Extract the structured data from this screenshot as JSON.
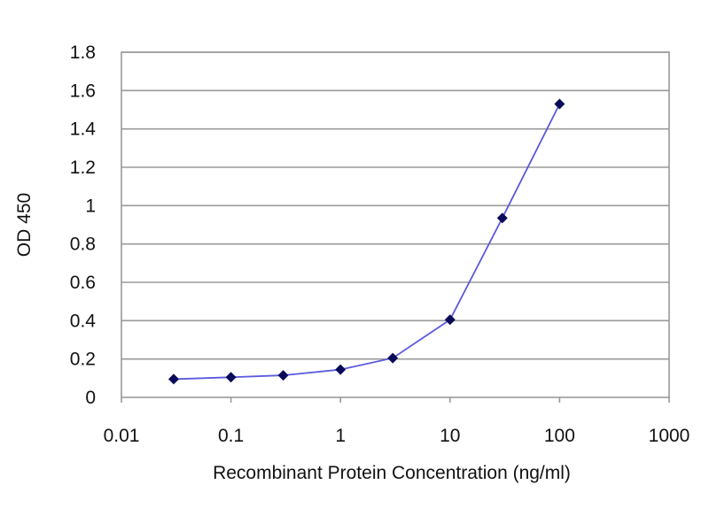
{
  "chart_data": {
    "type": "line",
    "title": "",
    "xlabel": "Recombinant Protein Concentration (ng/ml)",
    "ylabel": "OD 450",
    "xscale": "log",
    "xlim": [
      0.01,
      1000
    ],
    "ylim": [
      0,
      1.8
    ],
    "x_ticks": [
      0.01,
      0.1,
      1,
      10,
      100,
      1000
    ],
    "x_tick_labels": [
      "0.01",
      "0.1",
      "1",
      "10",
      "100",
      "1000"
    ],
    "y_ticks": [
      0,
      0.2,
      0.4,
      0.6,
      0.8,
      1,
      1.2,
      1.4,
      1.6,
      1.8
    ],
    "y_tick_labels": [
      "0",
      "0.2",
      "0.4",
      "0.6",
      "0.8",
      "1",
      "1.2",
      "1.4",
      "1.6",
      "1.8"
    ],
    "grid": "horizontal",
    "legend": "none",
    "series": [
      {
        "x": [
          0.03,
          0.1,
          0.3,
          1,
          3,
          10,
          30,
          100
        ],
        "values": [
          0.095,
          0.105,
          0.115,
          0.145,
          0.205,
          0.405,
          0.935,
          1.53
        ]
      }
    ],
    "colors": {
      "line": "#5a5adc",
      "marker": "#0a0a5a",
      "grid": "#9a9a9a",
      "frame": "#9a9a9a"
    }
  }
}
